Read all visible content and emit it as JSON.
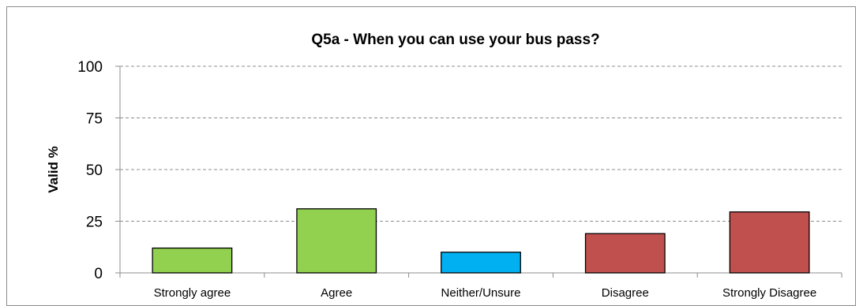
{
  "chart_data": {
    "type": "bar",
    "title": "Q5a - When you can use your bus pass?",
    "xlabel": "",
    "ylabel": "Valid %",
    "ylim": [
      0,
      100
    ],
    "yticks": [
      0,
      25,
      50,
      75,
      100
    ],
    "categories": [
      "Strongly agree",
      "Agree",
      "Neither/Unsure",
      "Disagree",
      "Strongly Disagree"
    ],
    "values": [
      12,
      31,
      10,
      19,
      29.5
    ],
    "colors": [
      "#92d050",
      "#92d050",
      "#00b0f0",
      "#c0504d",
      "#c0504d"
    ],
    "grid": true,
    "legend": "none"
  }
}
